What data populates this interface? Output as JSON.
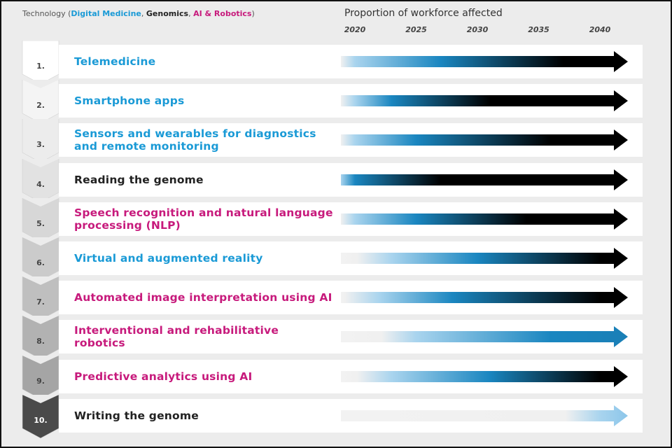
{
  "legend": {
    "prefix": "Technology (",
    "digital_medicine": "Digital Medicine",
    "sep1": ", ",
    "genomics": "Genomics",
    "sep2": ", ",
    "ai_robotics": "AI & Robotics",
    "suffix": ")"
  },
  "colors": {
    "digital_medicine": "#1a9ad6",
    "genomics": "#222222",
    "ai_robotics": "#c71a7c"
  },
  "chart_data": {
    "type": "gradient-arrow timeline",
    "title": "Proportion of workforce affected",
    "xlabel": "Proportion of workforce affected",
    "ylabel": "Technology",
    "x_ticks": [
      "2020",
      "2025",
      "2030",
      "2035",
      "2040"
    ],
    "x_range": [
      2017.5,
      2041.5
    ],
    "series": [
      {
        "rank": "1.",
        "name": "Telemedicine",
        "category": "digital_medicine",
        "stops": {
          "light_blue": 2020,
          "mid_blue": 2027,
          "black": 2037
        }
      },
      {
        "rank": "2.",
        "name": "Smartphone apps",
        "category": "digital_medicine",
        "stops": {
          "light_blue": 2020,
          "mid_blue": 2023,
          "black": 2031
        }
      },
      {
        "rank": "3.",
        "name": "Sensors and wearables for diagnostics and remote monitoring",
        "category": "digital_medicine",
        "stops": {
          "light_blue": 2020,
          "mid_blue": 2025,
          "black": 2036
        }
      },
      {
        "rank": "4.",
        "name": "Reading the genome",
        "category": "genomics",
        "stops": {
          "light_blue": 2018,
          "mid_blue": 2020,
          "black": 2027
        }
      },
      {
        "rank": "5.",
        "name": "Speech recognition and natural language processing (NLP)",
        "category": "ai_robotics",
        "stops": {
          "light_blue": 2020,
          "mid_blue": 2025,
          "black": 2034
        }
      },
      {
        "rank": "6.",
        "name": "Virtual and augmented reality",
        "category": "digital_medicine",
        "stops": {
          "light_blue": 2023,
          "mid_blue": 2030,
          "black": 2040
        }
      },
      {
        "rank": "7.",
        "name": "Automated image interpretation using AI",
        "category": "ai_robotics",
        "stops": {
          "light_blue": 2022,
          "mid_blue": 2028,
          "black": 2040
        }
      },
      {
        "rank": "8.",
        "name": "Interventional and rehabilitative robotics",
        "category": "ai_robotics",
        "stops": {
          "light_blue": 2025,
          "mid_blue": 2036,
          "black": null
        }
      },
      {
        "rank": "9.",
        "name": "Predictive analytics using AI",
        "category": "ai_robotics",
        "stops": {
          "light_blue": 2023,
          "mid_blue": 2031,
          "black": 2040
        }
      },
      {
        "rank": "10.",
        "name": "Writing the genome",
        "category": "genomics",
        "stops": {
          "light_blue": 2040,
          "mid_blue": null,
          "black": null
        }
      }
    ]
  }
}
